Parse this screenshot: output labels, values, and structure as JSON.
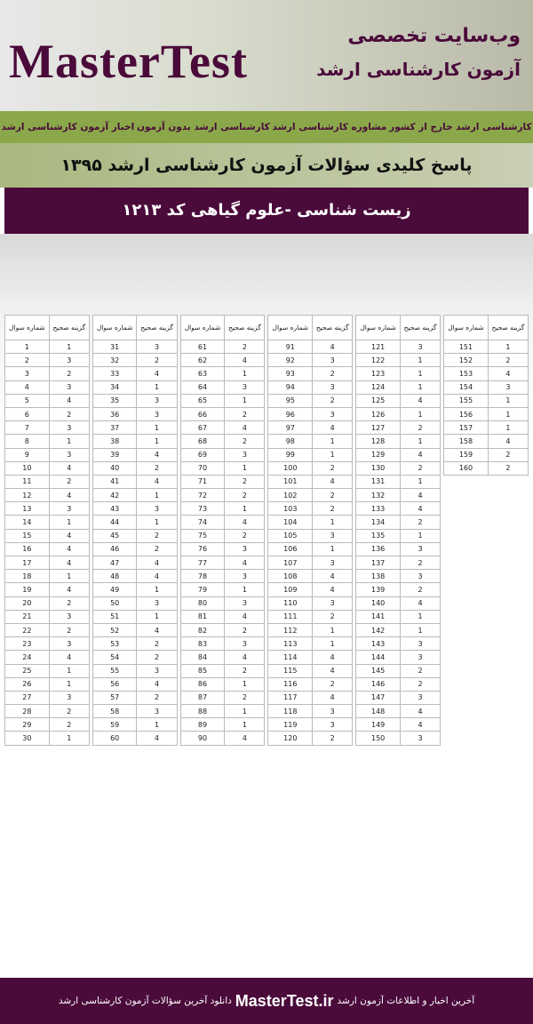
{
  "header": {
    "tagline": "وب‌سایت تخصصی",
    "subtitle": "آزمون کارشناسی ارشد",
    "brand": "MasterTest",
    "nav": [
      "اخبار آزمون کارشناسی ارشد",
      "کارشناسی ارشد بدون آزمون",
      "مشاوره کارشناسی ارشد",
      "کارشناسی ارشد خارج از کشور"
    ],
    "title": "پاسخ کلیدی سؤالات آزمون کارشناسی ارشد ۱۳۹۵",
    "exam": "زیست شناسی -علوم گیاهی  کد ۱۲۱۳"
  },
  "table": {
    "headers": [
      "شماره سوال",
      "گزینه صحیح"
    ],
    "blocks": [
      [
        [
          1,
          1
        ],
        [
          2,
          3
        ],
        [
          3,
          2
        ],
        [
          4,
          3
        ],
        [
          5,
          4
        ],
        [
          6,
          2
        ],
        [
          7,
          3
        ],
        [
          8,
          1
        ],
        [
          9,
          3
        ],
        [
          10,
          4
        ],
        [
          11,
          2
        ],
        [
          12,
          4
        ],
        [
          13,
          3
        ],
        [
          14,
          1
        ],
        [
          15,
          4
        ],
        [
          16,
          4
        ],
        [
          17,
          4
        ],
        [
          18,
          1
        ],
        [
          19,
          4
        ],
        [
          20,
          2
        ],
        [
          21,
          3
        ],
        [
          22,
          2
        ],
        [
          23,
          3
        ],
        [
          24,
          4
        ],
        [
          25,
          1
        ],
        [
          26,
          1
        ],
        [
          27,
          3
        ],
        [
          28,
          2
        ],
        [
          29,
          2
        ],
        [
          30,
          1
        ]
      ],
      [
        [
          31,
          3
        ],
        [
          32,
          2
        ],
        [
          33,
          4
        ],
        [
          34,
          1
        ],
        [
          35,
          3
        ],
        [
          36,
          3
        ],
        [
          37,
          1
        ],
        [
          38,
          1
        ],
        [
          39,
          4
        ],
        [
          40,
          2
        ],
        [
          41,
          4
        ],
        [
          42,
          1
        ],
        [
          43,
          3
        ],
        [
          44,
          1
        ],
        [
          45,
          2
        ],
        [
          46,
          2
        ],
        [
          47,
          4
        ],
        [
          48,
          4
        ],
        [
          49,
          1
        ],
        [
          50,
          3
        ],
        [
          51,
          1
        ],
        [
          52,
          4
        ],
        [
          53,
          2
        ],
        [
          54,
          2
        ],
        [
          55,
          3
        ],
        [
          56,
          4
        ],
        [
          57,
          2
        ],
        [
          58,
          3
        ],
        [
          59,
          1
        ],
        [
          60,
          4
        ]
      ],
      [
        [
          61,
          2
        ],
        [
          62,
          4
        ],
        [
          63,
          1
        ],
        [
          64,
          3
        ],
        [
          65,
          1
        ],
        [
          66,
          2
        ],
        [
          67,
          4
        ],
        [
          68,
          2
        ],
        [
          69,
          3
        ],
        [
          70,
          1
        ],
        [
          71,
          2
        ],
        [
          72,
          2
        ],
        [
          73,
          1
        ],
        [
          74,
          4
        ],
        [
          75,
          2
        ],
        [
          76,
          3
        ],
        [
          77,
          4
        ],
        [
          78,
          3
        ],
        [
          79,
          1
        ],
        [
          80,
          3
        ],
        [
          81,
          4
        ],
        [
          82,
          2
        ],
        [
          83,
          3
        ],
        [
          84,
          4
        ],
        [
          85,
          2
        ],
        [
          86,
          1
        ],
        [
          87,
          2
        ],
        [
          88,
          1
        ],
        [
          89,
          1
        ],
        [
          90,
          4
        ]
      ],
      [
        [
          91,
          4
        ],
        [
          92,
          3
        ],
        [
          93,
          2
        ],
        [
          94,
          3
        ],
        [
          95,
          2
        ],
        [
          96,
          3
        ],
        [
          97,
          4
        ],
        [
          98,
          1
        ],
        [
          99,
          1
        ],
        [
          100,
          2
        ],
        [
          101,
          4
        ],
        [
          102,
          2
        ],
        [
          103,
          2
        ],
        [
          104,
          1
        ],
        [
          105,
          3
        ],
        [
          106,
          1
        ],
        [
          107,
          3
        ],
        [
          108,
          4
        ],
        [
          109,
          4
        ],
        [
          110,
          3
        ],
        [
          111,
          2
        ],
        [
          112,
          1
        ],
        [
          113,
          1
        ],
        [
          114,
          4
        ],
        [
          115,
          4
        ],
        [
          116,
          2
        ],
        [
          117,
          4
        ],
        [
          118,
          3
        ],
        [
          119,
          3
        ],
        [
          120,
          2
        ]
      ],
      [
        [
          121,
          3
        ],
        [
          122,
          1
        ],
        [
          123,
          1
        ],
        [
          124,
          1
        ],
        [
          125,
          4
        ],
        [
          126,
          1
        ],
        [
          127,
          2
        ],
        [
          128,
          1
        ],
        [
          129,
          4
        ],
        [
          130,
          2
        ],
        [
          131,
          1
        ],
        [
          132,
          4
        ],
        [
          133,
          4
        ],
        [
          134,
          2
        ],
        [
          135,
          1
        ],
        [
          136,
          3
        ],
        [
          137,
          2
        ],
        [
          138,
          3
        ],
        [
          139,
          2
        ],
        [
          140,
          4
        ],
        [
          141,
          1
        ],
        [
          142,
          1
        ],
        [
          143,
          3
        ],
        [
          144,
          3
        ],
        [
          145,
          2
        ],
        [
          146,
          2
        ],
        [
          147,
          3
        ],
        [
          148,
          4
        ],
        [
          149,
          4
        ],
        [
          150,
          3
        ]
      ],
      [
        [
          151,
          1
        ],
        [
          152,
          2
        ],
        [
          153,
          4
        ],
        [
          154,
          3
        ],
        [
          155,
          1
        ],
        [
          156,
          1
        ],
        [
          157,
          1
        ],
        [
          158,
          4
        ],
        [
          159,
          2
        ],
        [
          160,
          2
        ]
      ]
    ]
  },
  "footer": {
    "left": "دانلود آخرین سؤالات آزمون کارشناسی ارشد",
    "site": "MasterTest.ir",
    "right": "آخرین اخبار و اطلاعات آزمون ارشد"
  }
}
